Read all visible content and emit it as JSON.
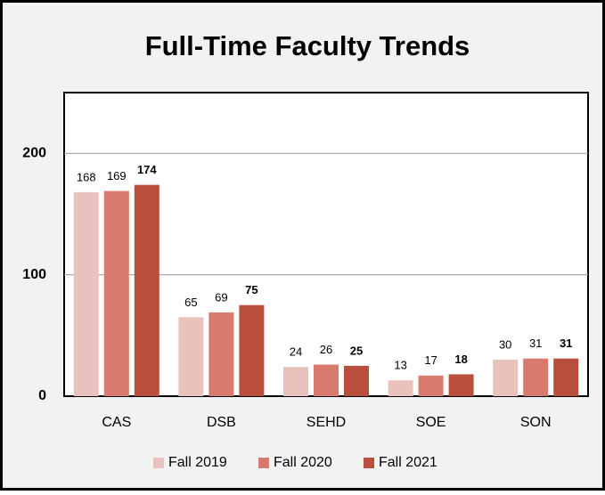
{
  "chart_data": {
    "type": "bar",
    "title": "Full-Time Faculty Trends",
    "categories": [
      "CAS",
      "DSB",
      "SEHD",
      "SOE",
      "SON"
    ],
    "series": [
      {
        "name": "Fall 2019",
        "color": "#e9c1bd",
        "values": [
          168,
          65,
          24,
          13,
          30
        ]
      },
      {
        "name": "Fall 2020",
        "color": "#d97a6e",
        "values": [
          169,
          69,
          26,
          17,
          31
        ]
      },
      {
        "name": "Fall 2021",
        "color": "#b84e3c",
        "values": [
          174,
          75,
          25,
          18,
          31
        ],
        "bold_labels": true
      }
    ],
    "ylim": [
      0,
      250
    ],
    "yticks": [
      0,
      100,
      200
    ],
    "grid": true,
    "legend": "bottom"
  }
}
